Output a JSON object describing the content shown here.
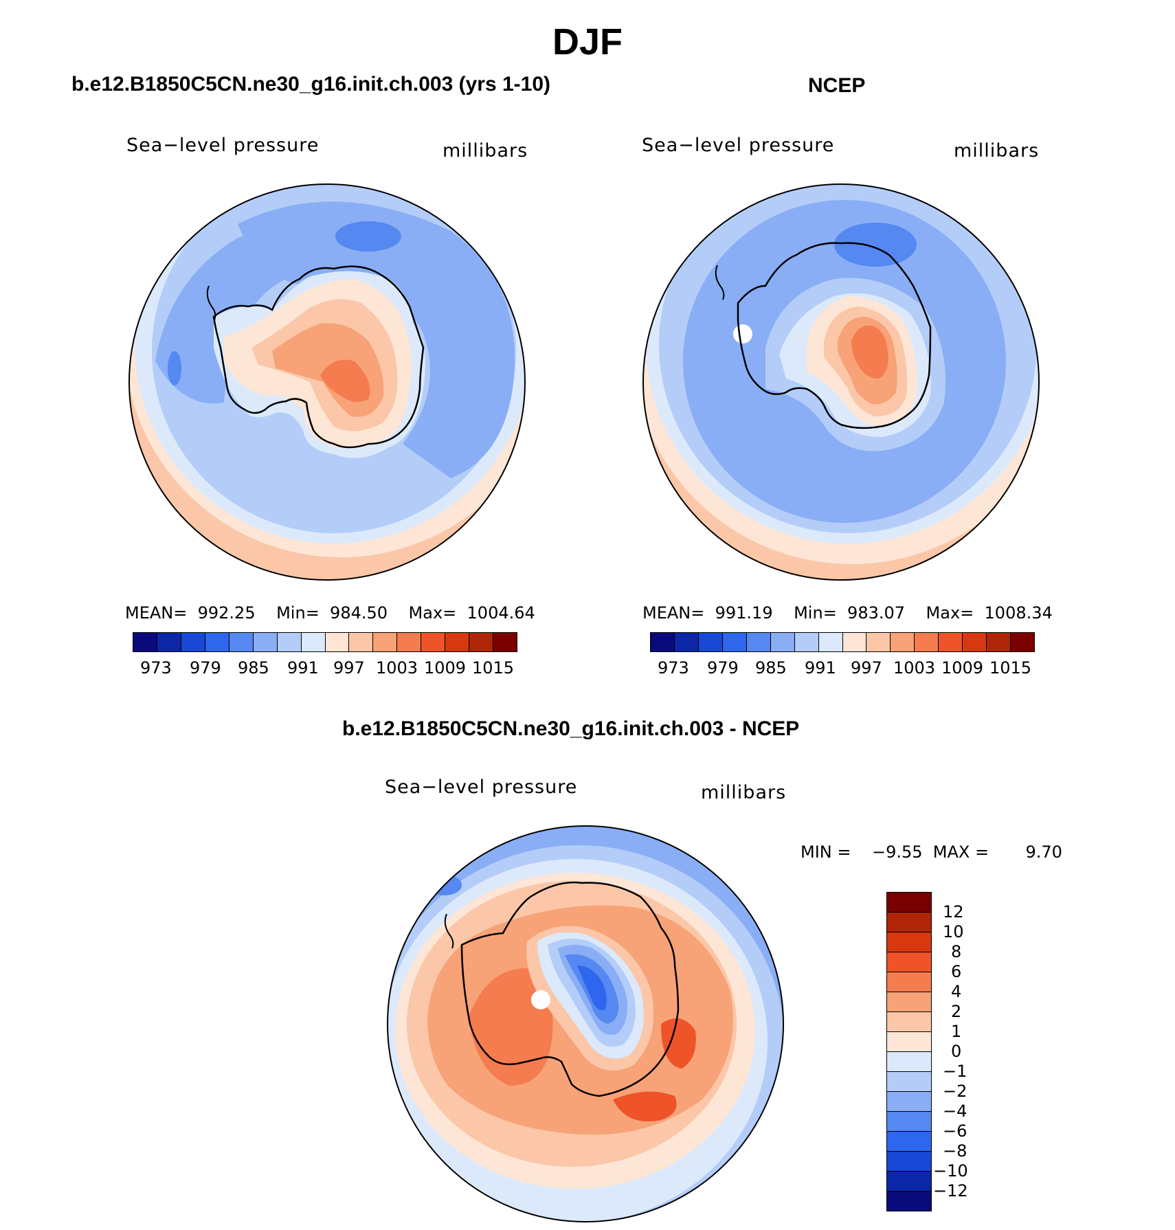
{
  "figure": {
    "title": "DJF"
  },
  "panels": {
    "model": {
      "case_title": "b.e12.B1850C5CN.ne30_g16.init.ch.003 (yrs 1-10)",
      "left_label": "Sea−level pressure",
      "right_label": "millibars",
      "stats": "MEAN=  992.25    Min=  984.50    Max=  1004.64"
    },
    "obs": {
      "case_title": "NCEP",
      "left_label": "Sea−level pressure",
      "right_label": "millibars",
      "stats": "MEAN=  991.19    Min=  983.07    Max=  1008.34"
    },
    "diff": {
      "case_title": "b.e12.B1850C5CN.ne30_g16.init.ch.003 - NCEP",
      "left_label": "Sea−level pressure",
      "right_label": "millibars",
      "stats": "MIN =    −9.55  MAX =       9.70"
    }
  },
  "colorbar_top": {
    "ticks": [
      "973",
      "979",
      "985",
      "991",
      "997",
      "1003",
      "1009",
      "1015"
    ],
    "colors": [
      "#0a0a7a",
      "#0b27a8",
      "#1848d6",
      "#2e66ee",
      "#5588f0",
      "#89aef5",
      "#b3cdf8",
      "#dbe9fb",
      "#fde6d6",
      "#fbc7a8",
      "#f7a277",
      "#f47c4e",
      "#ef5328",
      "#d8380f",
      "#b02407",
      "#7a0000"
    ]
  },
  "colorbar_diff": {
    "ticks": [
      "12",
      "10",
      "8",
      "6",
      "4",
      "2",
      "1",
      "0",
      "−1",
      "−2",
      "−4",
      "−6",
      "−8",
      "−10",
      "−12"
    ],
    "colors": [
      "#7a0000",
      "#b02407",
      "#d8380f",
      "#ef5328",
      "#f47c4e",
      "#f7a277",
      "#fbc7a8",
      "#fde6d6",
      "#dbe9fb",
      "#b3cdf8",
      "#89aef5",
      "#5588f0",
      "#2e66ee",
      "#1848d6",
      "#0b27a8",
      "#0a0a7a"
    ]
  }
}
